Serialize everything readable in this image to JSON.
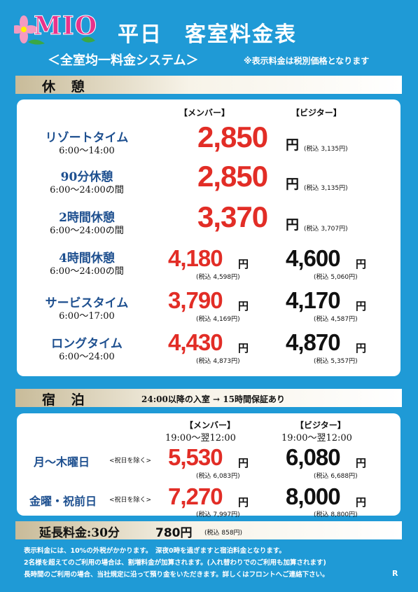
{
  "logo": {
    "text": "MIO"
  },
  "title": "平日　客室料金表",
  "subtitle": "＜全室均一料金システム＞",
  "tax_note": "※表示料金は税別価格となります",
  "rest_section": {
    "label": "休 憩",
    "member_header": "【メンバー】",
    "visitor_header": "【ビジター】",
    "rows": [
      {
        "name": "リゾートタイム",
        "hours": "6:00〜14:00",
        "price": "2,850",
        "yen": "円",
        "tax": "(税込 3,135円)"
      },
      {
        "name": "90分休憩",
        "hours": "6:00〜24:00の間",
        "price": "2,850",
        "yen": "円",
        "tax": "(税込 3,135円)"
      },
      {
        "name": "2時間休憩",
        "hours": "6:00〜24:00の間",
        "price": "3,370",
        "yen": "円",
        "tax": "(税込 3,707円)"
      },
      {
        "name": "4時間休憩",
        "hours": "6:00〜24:00の間",
        "member": "4,180",
        "member_tax": "(税込 4,598円)",
        "visitor": "4,600",
        "visitor_tax": "(税込 5,060円)",
        "yen": "円"
      },
      {
        "name": "サービスタイム",
        "hours": "6:00〜17:00",
        "member": "3,790",
        "member_tax": "(税込 4,169円)",
        "visitor": "4,170",
        "visitor_tax": "(税込 4,587円)",
        "yen": "円"
      },
      {
        "name": "ロングタイム",
        "hours": "6:00〜24:00",
        "member": "4,430",
        "member_tax": "(税込 4,873円)",
        "visitor": "4,870",
        "visitor_tax": "(税込 5,357円)",
        "yen": "円"
      }
    ]
  },
  "stay_section": {
    "label": "宿 泊",
    "note": "24:00以降の入室 → 15時間保証あり",
    "member_header": "【メンバー】",
    "visitor_header": "【ビジター】",
    "member_hours": "19:00〜翌12:00",
    "visitor_hours": "19:00〜翌12:00",
    "rows": [
      {
        "name": "月〜木曜日",
        "note": "<祝日を除く>",
        "member": "5,530",
        "member_tax": "(税込 6,083円)",
        "visitor": "6,080",
        "visitor_tax": "(税込 6,688円)",
        "yen": "円"
      },
      {
        "name": "金曜・祝前日",
        "note": "<祝日を除く>",
        "member": "7,270",
        "member_tax": "(税込 7,997円)",
        "visitor": "8,000",
        "visitor_tax": "(税込 8,800円)",
        "yen": "円"
      }
    ]
  },
  "extension": {
    "label": "延長料金:30分",
    "price": "780円",
    "tax": "(税込 858円)"
  },
  "footer": [
    "表示料金には、10%の外税がかかります。　深夜0時を過ぎますと宿泊料金となります。",
    "2名様を超えてのご利用の場合は、割増料金が加算されます。(入れ替わりでのご利用も加算されます)",
    "長時間のご利用の場合、当社規定に沿って預り金をいただきます。詳しくはフロントへご連絡下さい。"
  ],
  "corner_mark": "R",
  "colors": {
    "background": "#1f9ad6",
    "price_red": "#e22d26",
    "plan_blue": "#1d4f8f",
    "logo_pink": "#e8338b"
  }
}
